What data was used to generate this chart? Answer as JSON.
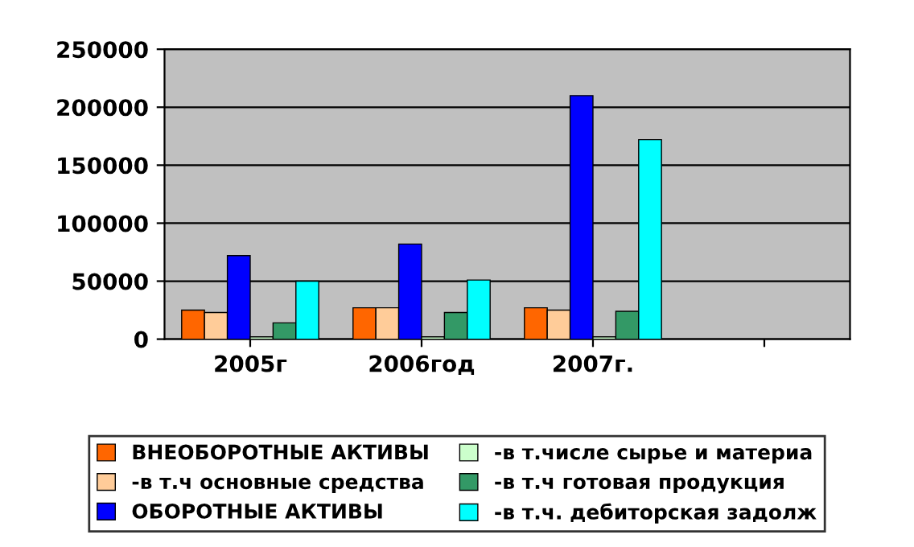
{
  "chart_data": {
    "type": "bar",
    "categories": [
      "2005г",
      "2006год",
      "2007г.",
      null
    ],
    "series": [
      {
        "name": "ВНЕОБОРОТНЫЕ АКТИВЫ",
        "color": "#ff6600",
        "values": [
          25000,
          27000,
          27000,
          null
        ]
      },
      {
        "name": "-в т.ч основные средства",
        "color": "#ffcc99",
        "values": [
          23000,
          27000,
          25000,
          null
        ]
      },
      {
        "name": "ОБОРОТНЫЕ АКТИВЫ",
        "color": "#0000ff",
        "values": [
          72000,
          82000,
          210000,
          null
        ]
      },
      {
        "name": "-в т.числе сырье и материа",
        "color": "#ccffcc",
        "values": [
          2000,
          2000,
          2000,
          null
        ]
      },
      {
        "name": "-в т.ч готовая продукция",
        "color": "#339966",
        "values": [
          14000,
          23000,
          24000,
          null
        ]
      },
      {
        "name": "-в т.ч. дебиторская задолж",
        "color": "#00ffff",
        "values": [
          50000,
          51000,
          172000,
          null
        ]
      }
    ],
    "ylim": [
      0,
      250000
    ],
    "yticks": [
      0,
      50000,
      100000,
      150000,
      200000,
      250000
    ],
    "grid": "y",
    "legend": "bottom"
  }
}
